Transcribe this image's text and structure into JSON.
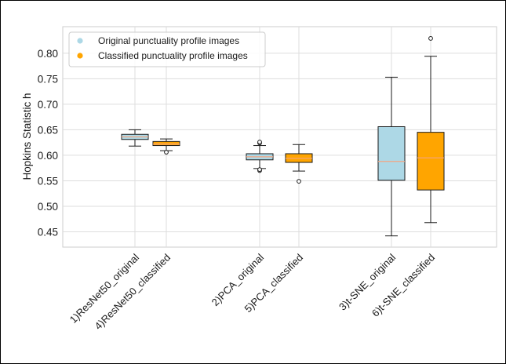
{
  "chart_data": {
    "type": "box",
    "title": "",
    "xlabel": "",
    "ylabel": "Hopkins Statistic h",
    "ylim": [
      0.42,
      0.852
    ],
    "yticks": [
      0.45,
      0.5,
      0.55,
      0.6,
      0.65,
      0.7,
      0.75,
      0.8
    ],
    "ytick_labels": [
      "0.45",
      "0.50",
      "0.55",
      "0.60",
      "0.65",
      "0.70",
      "0.75",
      "0.80"
    ],
    "grid": true,
    "legend_position": "top-left",
    "legend": [
      {
        "label": "Original punctuality profile images",
        "color": "#add8e6"
      },
      {
        "label": "Classified punctuality profile images",
        "color": "#ffa500"
      }
    ],
    "median_color": "#f4a582",
    "boxes": [
      {
        "category": "1)ResNet50_original",
        "group": "original",
        "color": "#add8e6",
        "whisker_low": 0.618,
        "q1": 0.631,
        "median": 0.636,
        "q3": 0.641,
        "whisker_high": 0.65,
        "outliers": []
      },
      {
        "category": "4)ResNet50_classified",
        "group": "classified",
        "color": "#ffa500",
        "whisker_low": 0.609,
        "q1": 0.619,
        "median": 0.622,
        "q3": 0.627,
        "whisker_high": 0.632,
        "outliers": [
          0.606
        ]
      },
      {
        "category": "2)PCA_original",
        "group": "original",
        "color": "#add8e6",
        "whisker_low": 0.574,
        "q1": 0.591,
        "median": 0.597,
        "q3": 0.603,
        "whisker_high": 0.619,
        "outliers": [
          0.57,
          0.572,
          0.624,
          0.626
        ]
      },
      {
        "category": "5)PCA_classified",
        "group": "classified",
        "color": "#ffa500",
        "whisker_low": 0.569,
        "q1": 0.586,
        "median": 0.594,
        "q3": 0.603,
        "whisker_high": 0.621,
        "outliers": [
          0.549
        ]
      },
      {
        "category": "3)t-SNE_original",
        "group": "original",
        "color": "#add8e6",
        "whisker_low": 0.442,
        "q1": 0.551,
        "median": 0.588,
        "q3": 0.656,
        "whisker_high": 0.753,
        "outliers": []
      },
      {
        "category": "6)t-SNE_classified",
        "group": "classified",
        "color": "#ffa500",
        "whisker_low": 0.468,
        "q1": 0.532,
        "median": 0.595,
        "q3": 0.645,
        "whisker_high": 0.794,
        "outliers": [
          0.829
        ]
      }
    ]
  }
}
